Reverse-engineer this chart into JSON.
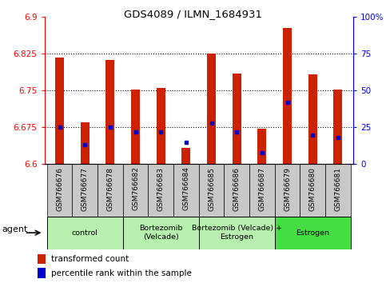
{
  "title": "GDS4089 / ILMN_1684931",
  "samples": [
    "GSM766676",
    "GSM766677",
    "GSM766678",
    "GSM766682",
    "GSM766683",
    "GSM766684",
    "GSM766685",
    "GSM766686",
    "GSM766687",
    "GSM766679",
    "GSM766680",
    "GSM766681"
  ],
  "red_values": [
    6.818,
    6.685,
    6.812,
    6.752,
    6.755,
    6.633,
    6.826,
    6.785,
    6.672,
    6.878,
    6.783,
    6.752
  ],
  "blue_values_pct": [
    25,
    13,
    25,
    22,
    22,
    15,
    28,
    22,
    8,
    42,
    20,
    18
  ],
  "y_min": 6.6,
  "y_max": 6.9,
  "y_ticks": [
    6.6,
    6.675,
    6.75,
    6.825,
    6.9
  ],
  "y_tick_labels": [
    "6.6",
    "6.675",
    "6.75",
    "6.825",
    "6.9"
  ],
  "right_y_ticks": [
    0,
    25,
    50,
    75,
    100
  ],
  "right_y_labels": [
    "0",
    "25",
    "50",
    "75",
    "100%"
  ],
  "groups": [
    {
      "label": "control",
      "start": 0,
      "end": 3,
      "color": "#b8f0b0"
    },
    {
      "label": "Bortezomib\n(Velcade)",
      "start": 3,
      "end": 6,
      "color": "#b8f0b0"
    },
    {
      "label": "Bortezomib (Velcade) +\nEstrogen",
      "start": 6,
      "end": 9,
      "color": "#b8f0b0"
    },
    {
      "label": "Estrogen",
      "start": 9,
      "end": 12,
      "color": "#44dd44"
    }
  ],
  "bar_color": "#cc2200",
  "dot_color": "#0000cc",
  "legend_red_label": "transformed count",
  "legend_blue_label": "percentile rank within the sample",
  "agent_label": "agent",
  "background_color": "#ffffff",
  "plot_bg_color": "#ffffff",
  "tick_bg_color": "#c8c8c8",
  "grid_lines": [
    6.675,
    6.75,
    6.825
  ]
}
